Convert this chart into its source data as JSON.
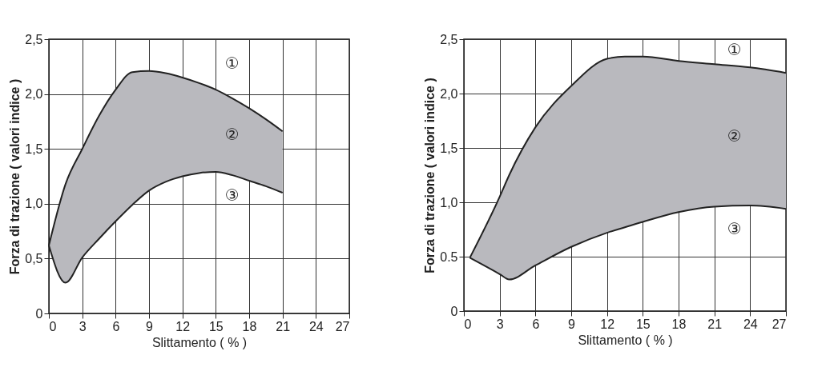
{
  "chart_data": [
    {
      "type": "area",
      "xlabel": "Slittamento ( % )",
      "ylabel": "Forza di trazione ( valori indice )",
      "x": [
        0,
        1.5,
        3,
        4.5,
        6,
        7.5,
        9,
        10.5,
        12,
        13.5,
        15,
        16.5,
        18,
        19.5,
        21
      ],
      "series": [
        {
          "color": "#b9b9be",
          "values": [
            0.62,
            1.18,
            1.5,
            1.8,
            2.04,
            2.2,
            2.21,
            2.19,
            2.15,
            2.1,
            2.04,
            1.96,
            1.87,
            1.77,
            1.66
          ]
        },
        {
          "type": "line",
          "color": "#222222",
          "values": [
            0.62,
            0.28,
            0.51,
            0.68,
            0.84,
            0.99,
            1.12,
            1.2,
            1.25,
            1.28,
            1.29,
            1.26,
            1.21,
            1.16,
            1.1
          ]
        }
      ],
      "xlim": [
        0,
        27
      ],
      "xticks": [
        0,
        3,
        6,
        9,
        12,
        15,
        18,
        21,
        24,
        27
      ],
      "ylim": [
        0,
        2.5
      ],
      "yticks": [
        0,
        {
          "value": 0.5,
          "label": "0,5"
        },
        {
          "value": 1,
          "label": "1,0"
        },
        {
          "value": 1.5,
          "label": "1,5"
        },
        {
          "value": 2,
          "label": "2,0"
        },
        {
          "value": 2.5,
          "label": "2,5"
        }
      ],
      "grid": true,
      "annotations": [
        "①",
        "②",
        "③"
      ]
    },
    {
      "type": "area",
      "xlabel": "Slittamento ( % )",
      "ylabel": "Forza di trazione ( valori indice )",
      "x": [
        0.5,
        3,
        3.8,
        6,
        9,
        12,
        13.5,
        15,
        18,
        21,
        24,
        27
      ],
      "series": [
        {
          "color": "#b9b9be",
          "values": [
            0.49,
            1.05,
            1.25,
            1.69,
            2.07,
            2.32,
            2.34,
            2.34,
            2.3,
            2.27,
            2.24,
            2.19
          ]
        },
        {
          "type": "line",
          "color": "#222222",
          "values": [
            0.49,
            0.34,
            0.29,
            0.42,
            0.59,
            0.72,
            0.77,
            0.82,
            0.91,
            0.96,
            0.97,
            0.94
          ]
        }
      ],
      "xlim": [
        0,
        27
      ],
      "xticks": [
        0,
        3,
        6,
        9,
        12,
        15,
        18,
        21,
        24,
        27
      ],
      "ylim": [
        0,
        2.5
      ],
      "yticks": [
        0,
        {
          "value": 0.5,
          "label": "0.5"
        },
        {
          "value": 1,
          "label": "1,0"
        },
        {
          "value": 1.5,
          "label": "1,5"
        },
        {
          "value": 2,
          "label": "2,0"
        },
        {
          "value": 2.5,
          "label": "2,5"
        }
      ],
      "grid": true,
      "annotations": [
        "①",
        "②",
        "③"
      ]
    }
  ]
}
